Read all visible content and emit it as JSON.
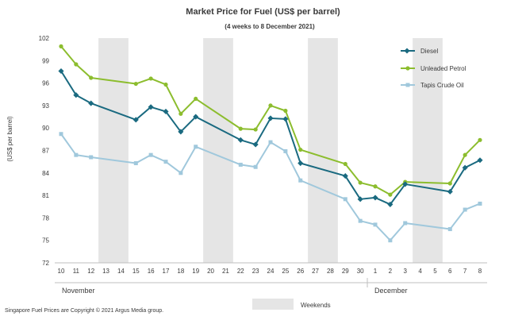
{
  "chart_data": {
    "type": "line",
    "title": "Market Price for Fuel (US$ per barrel)",
    "subtitle": "(4 weeks to 8 December 2021)",
    "ylabel": "(US$ per barrel)",
    "ylim": [
      72,
      102
    ],
    "yticks": [
      72,
      75,
      78,
      81,
      84,
      87,
      90,
      93,
      96,
      99,
      102
    ],
    "x_dates": [
      "2021-11-10",
      "2021-11-11",
      "2021-11-12",
      "2021-11-13",
      "2021-11-14",
      "2021-11-15",
      "2021-11-16",
      "2021-11-17",
      "2021-11-18",
      "2021-11-19",
      "2021-11-20",
      "2021-11-21",
      "2021-11-22",
      "2021-11-23",
      "2021-11-24",
      "2021-11-25",
      "2021-11-26",
      "2021-11-27",
      "2021-11-28",
      "2021-11-29",
      "2021-11-30",
      "2021-12-01",
      "2021-12-02",
      "2021-12-03",
      "2021-12-04",
      "2021-12-05",
      "2021-12-06",
      "2021-12-07",
      "2021-12-08"
    ],
    "x_tick_labels": [
      "10",
      "11",
      "12",
      "13",
      "14",
      "15",
      "16",
      "17",
      "18",
      "19",
      "20",
      "21",
      "22",
      "23",
      "24",
      "25",
      "26",
      "27",
      "28",
      "29",
      "30",
      "1",
      "2",
      "3",
      "4",
      "5",
      "6",
      "7",
      "8"
    ],
    "months": [
      "November",
      "December"
    ],
    "weekend_bands": [
      [
        "2021-11-13",
        "2021-11-14"
      ],
      [
        "2021-11-20",
        "2021-11-21"
      ],
      [
        "2021-11-27",
        "2021-11-28"
      ],
      [
        "2021-12-04",
        "2021-12-05"
      ]
    ],
    "series": [
      {
        "name": "Diesel",
        "color": "#1a6a80",
        "marker": "diamond",
        "x": [
          "2021-11-10",
          "2021-11-11",
          "2021-11-12",
          "2021-11-15",
          "2021-11-16",
          "2021-11-17",
          "2021-11-18",
          "2021-11-19",
          "2021-11-22",
          "2021-11-23",
          "2021-11-24",
          "2021-11-25",
          "2021-11-26",
          "2021-11-29",
          "2021-11-30",
          "2021-12-01",
          "2021-12-02",
          "2021-12-03",
          "2021-12-06",
          "2021-12-07",
          "2021-12-08"
        ],
        "values": [
          97.6,
          94.4,
          93.3,
          91.1,
          92.8,
          92.2,
          89.5,
          91.5,
          88.4,
          87.8,
          91.3,
          91.2,
          85.3,
          83.6,
          80.5,
          80.7,
          79.8,
          82.5,
          81.5,
          84.7,
          85.7
        ]
      },
      {
        "name": "Unleaded Petrol",
        "color": "#8cbd2e",
        "marker": "circle",
        "x": [
          "2021-11-10",
          "2021-11-11",
          "2021-11-12",
          "2021-11-15",
          "2021-11-16",
          "2021-11-17",
          "2021-11-18",
          "2021-11-19",
          "2021-11-22",
          "2021-11-23",
          "2021-11-24",
          "2021-11-25",
          "2021-11-26",
          "2021-11-29",
          "2021-11-30",
          "2021-12-01",
          "2021-12-02",
          "2021-12-03",
          "2021-12-06",
          "2021-12-07",
          "2021-12-08"
        ],
        "values": [
          100.9,
          98.5,
          96.7,
          95.9,
          96.6,
          95.8,
          91.9,
          93.9,
          89.9,
          89.8,
          93.0,
          92.3,
          87.1,
          85.2,
          82.7,
          82.2,
          81.1,
          82.8,
          82.6,
          86.4,
          88.4
        ]
      },
      {
        "name": "Tapis Crude Oil",
        "color": "#a0c8dc",
        "marker": "square",
        "x": [
          "2021-11-10",
          "2021-11-11",
          "2021-11-12",
          "2021-11-15",
          "2021-11-16",
          "2021-11-17",
          "2021-11-18",
          "2021-11-19",
          "2021-11-22",
          "2021-11-23",
          "2021-11-24",
          "2021-11-25",
          "2021-11-26",
          "2021-11-29",
          "2021-11-30",
          "2021-12-01",
          "2021-12-02",
          "2021-12-03",
          "2021-12-06",
          "2021-12-07",
          "2021-12-08"
        ],
        "values": [
          89.2,
          86.4,
          86.1,
          85.3,
          86.4,
          85.5,
          84.0,
          87.5,
          85.1,
          84.8,
          88.1,
          86.9,
          83.0,
          80.5,
          77.6,
          77.1,
          75.0,
          77.3,
          76.5,
          79.1,
          79.9
        ]
      }
    ],
    "legend": {
      "position": "top-right",
      "entries": [
        "Diesel",
        "Unleaded Petrol",
        "Tapis Crude Oil"
      ]
    },
    "weekend_legend_label": "Weekends",
    "weekend_color": "#e5e5e5",
    "grid": false,
    "footer": "Singapore Fuel Prices are Copyright © 2021 Argus Media group."
  }
}
